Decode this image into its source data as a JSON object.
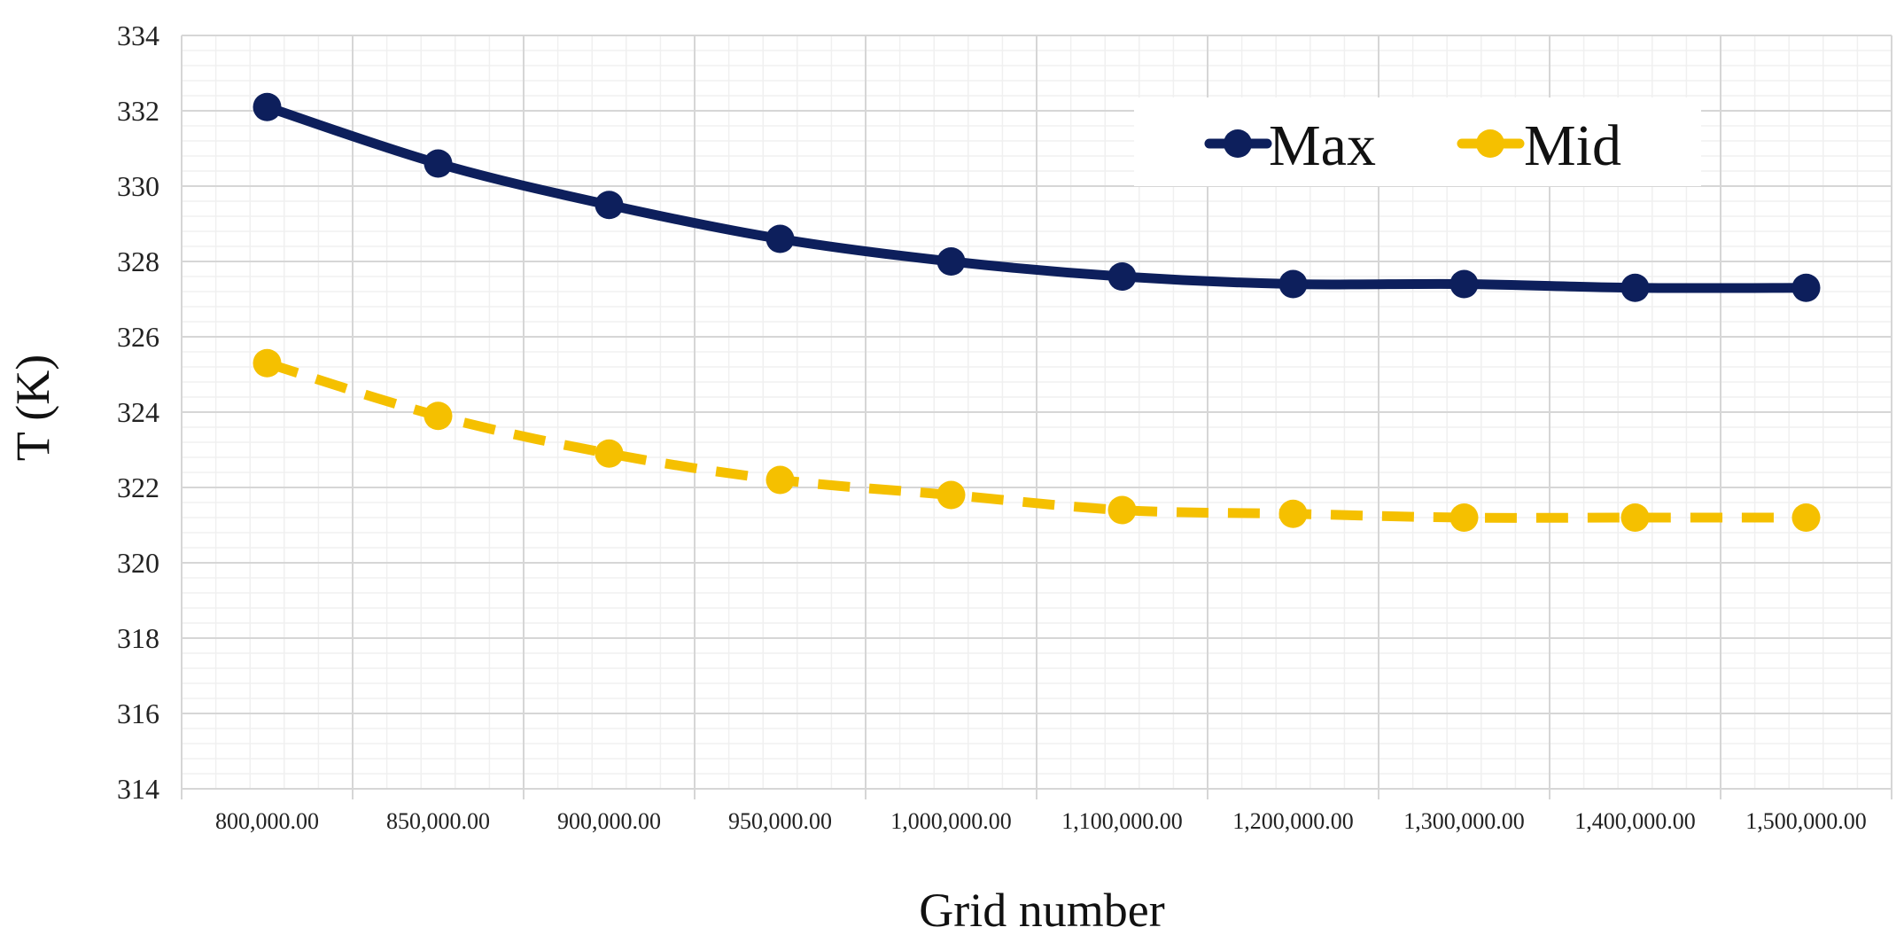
{
  "chart_data": {
    "type": "line",
    "title": "",
    "xlabel": "Grid number",
    "ylabel": "T (K)",
    "categories": [
      "800,000.00",
      "850,000.00",
      "900,000.00",
      "950,000.00",
      "1,000,000.00",
      "1,100,000.00",
      "1,200,000.00",
      "1,300,000.00",
      "1,400,000.00",
      "1,500,000.00"
    ],
    "ylim": [
      314,
      334
    ],
    "yticks": [
      "314",
      "316",
      "318",
      "320",
      "322",
      "324",
      "326",
      "328",
      "330",
      "332",
      "334"
    ],
    "grid": true,
    "legend_position": "top-right",
    "series": [
      {
        "name": "Max",
        "color": "#0d1f5c",
        "style": "solid",
        "values": [
          332.1,
          330.6,
          329.5,
          328.6,
          328.0,
          327.6,
          327.4,
          327.4,
          327.3,
          327.3
        ]
      },
      {
        "name": "Mid",
        "color": "#f5c000",
        "style": "dashed",
        "values": [
          325.3,
          323.9,
          322.9,
          322.2,
          321.8,
          321.4,
          321.3,
          321.2,
          321.2,
          321.2
        ]
      }
    ]
  }
}
